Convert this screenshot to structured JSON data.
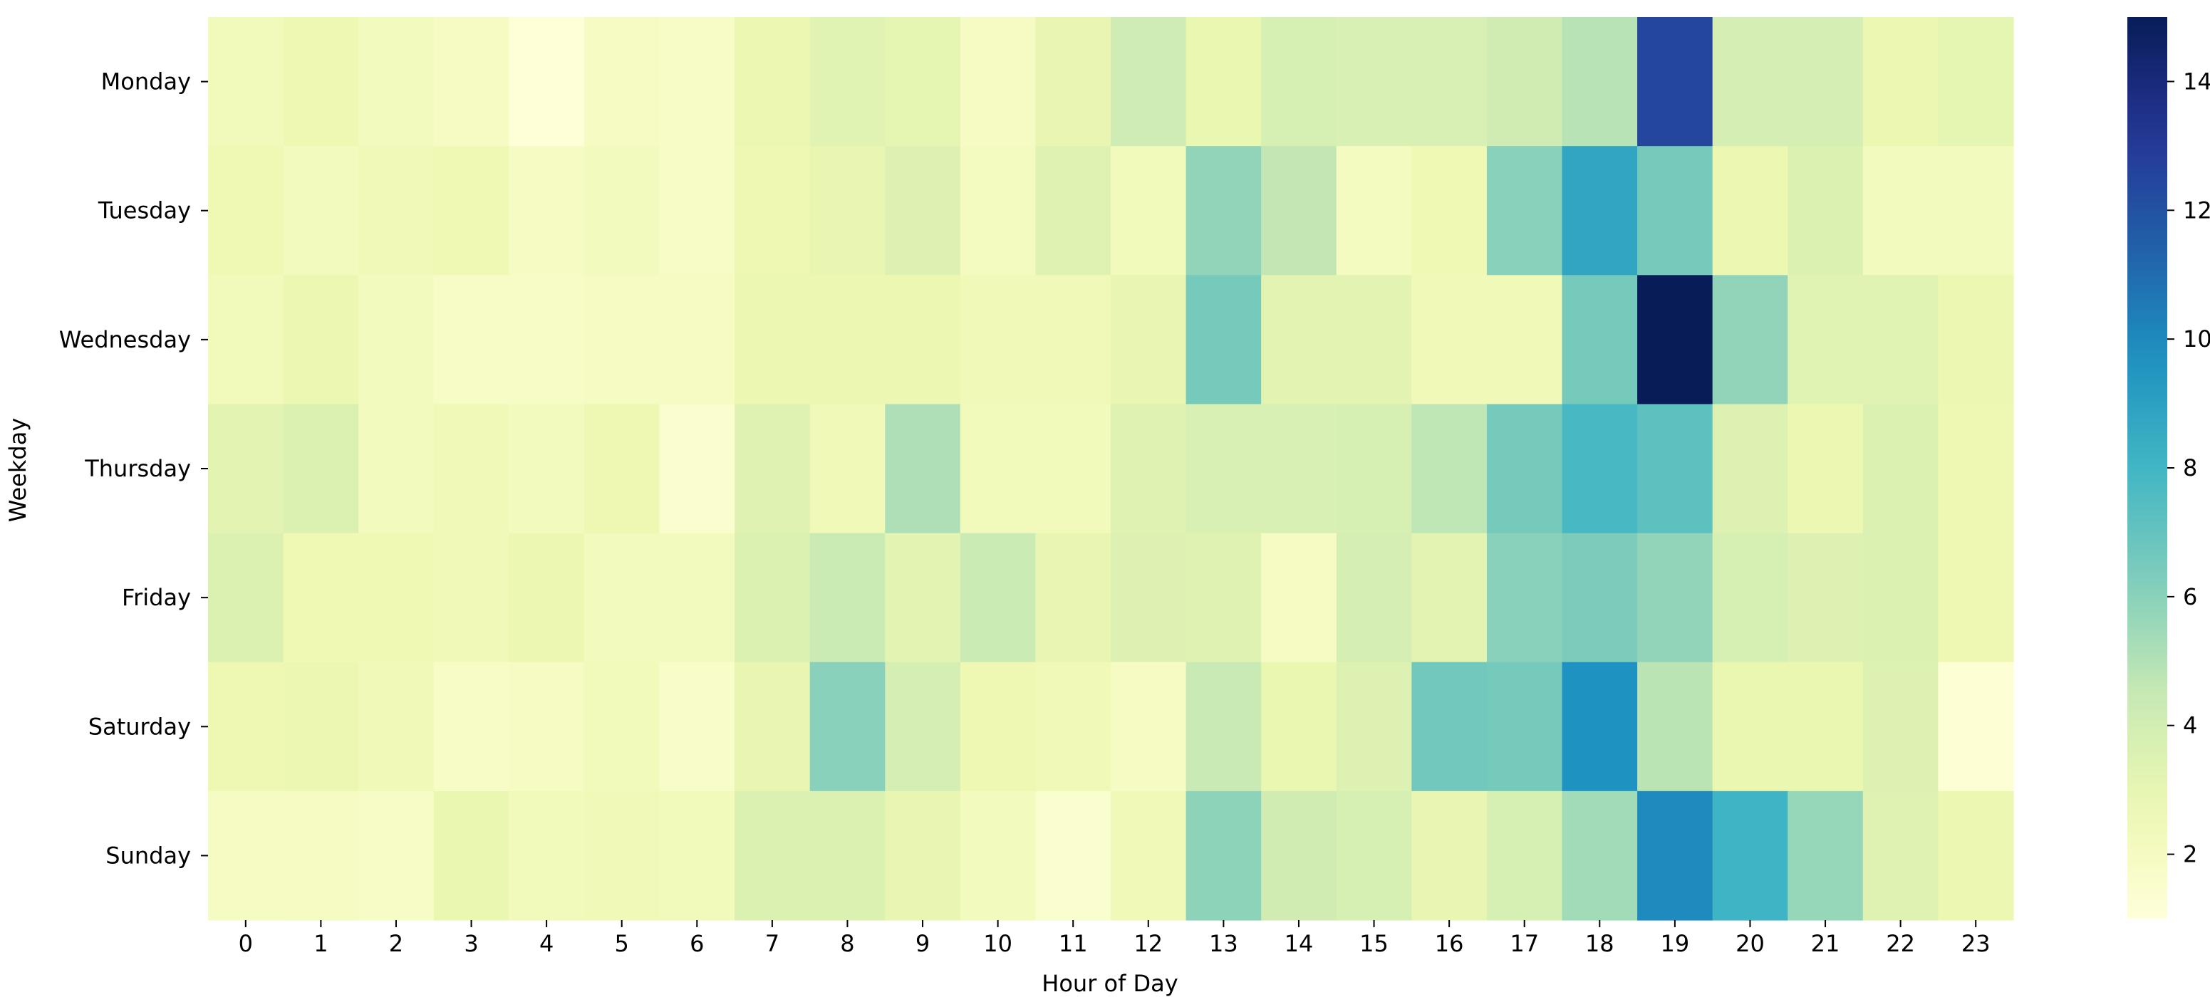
{
  "chart_data": {
    "type": "heatmap",
    "title": "",
    "xlabel": "Hour of Day",
    "ylabel": "Weekday",
    "x": [
      "0",
      "1",
      "2",
      "3",
      "4",
      "5",
      "6",
      "7",
      "8",
      "9",
      "10",
      "11",
      "12",
      "13",
      "14",
      "15",
      "16",
      "17",
      "18",
      "19",
      "20",
      "21",
      "22",
      "23"
    ],
    "y": [
      "Monday",
      "Tuesday",
      "Wednesday",
      "Thursday",
      "Friday",
      "Saturday",
      "Sunday"
    ],
    "values": [
      [
        2.3,
        2.7,
        2.2,
        2.0,
        1.1,
        1.9,
        1.8,
        2.8,
        3.3,
        3.1,
        2.0,
        3.0,
        4.2,
        2.9,
        3.8,
        3.7,
        3.7,
        4.1,
        4.9,
        12.5,
        3.9,
        3.9,
        2.8,
        3.1
      ],
      [
        2.6,
        2.2,
        2.5,
        2.6,
        1.9,
        2.2,
        1.8,
        2.7,
        3.0,
        3.5,
        2.1,
        3.4,
        2.3,
        5.8,
        4.6,
        2.1,
        2.6,
        6.0,
        8.8,
        6.5,
        2.8,
        3.6,
        2.2,
        2.2
      ],
      [
        2.3,
        2.8,
        2.2,
        1.8,
        1.8,
        2.0,
        2.0,
        2.8,
        2.8,
        2.8,
        2.5,
        2.5,
        3.0,
        6.5,
        3.2,
        3.2,
        2.4,
        2.5,
        6.5,
        15.0,
        5.8,
        3.3,
        3.3,
        2.8
      ],
      [
        3.2,
        3.6,
        2.2,
        2.5,
        2.2,
        2.7,
        1.5,
        3.4,
        2.4,
        5.1,
        2.3,
        2.3,
        3.4,
        3.7,
        3.7,
        3.8,
        4.7,
        6.5,
        7.8,
        7.2,
        3.5,
        2.8,
        3.6,
        2.7
      ],
      [
        3.6,
        2.6,
        2.6,
        2.4,
        2.8,
        2.2,
        2.2,
        3.6,
        4.3,
        3.2,
        4.3,
        3.0,
        3.5,
        3.4,
        1.9,
        3.9,
        3.2,
        6.0,
        6.3,
        5.8,
        3.8,
        3.5,
        3.6,
        2.7
      ],
      [
        2.7,
        2.8,
        2.5,
        1.8,
        2.0,
        2.3,
        1.7,
        3.0,
        6.0,
        3.9,
        2.7,
        2.5,
        1.9,
        4.4,
        2.9,
        3.5,
        6.6,
        6.5,
        9.7,
        4.8,
        2.9,
        2.9,
        3.5,
        1.2
      ],
      [
        1.9,
        2.0,
        1.8,
        2.9,
        2.3,
        2.5,
        2.3,
        3.6,
        3.6,
        3.0,
        2.2,
        1.5,
        2.5,
        5.9,
        4.1,
        3.8,
        3.0,
        3.8,
        5.4,
        10.0,
        8.1,
        5.7,
        3.4,
        2.8
      ]
    ],
    "vmin": 1,
    "vmax": 15,
    "colormap": "YlGnBu",
    "colorbar": {
      "ticks": [
        2,
        4,
        6,
        8,
        10,
        12,
        14
      ],
      "tick_labels": [
        "2",
        "4",
        "6",
        "8",
        "10",
        "12",
        "14"
      ]
    },
    "grid": false,
    "legend": "colorbar-right"
  }
}
